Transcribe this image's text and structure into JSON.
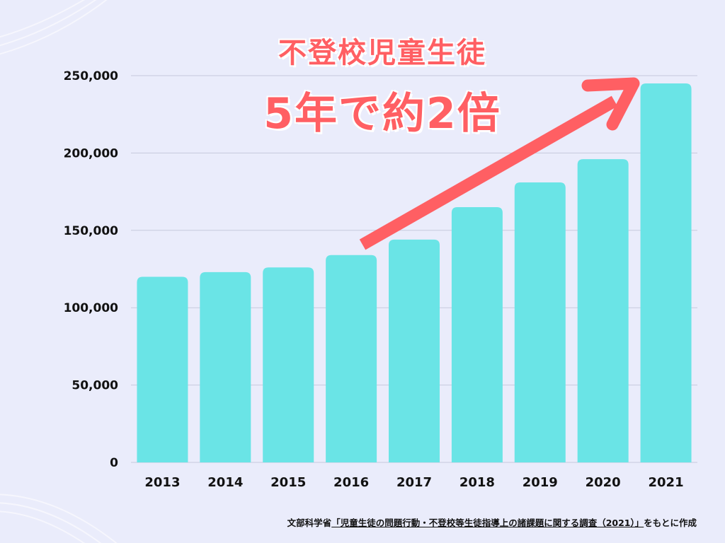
{
  "chart_data": {
    "type": "bar",
    "title": "不登校児童生徒",
    "subtitle": "5年で約2倍",
    "categories": [
      "2013",
      "2014",
      "2015",
      "2016",
      "2017",
      "2018",
      "2019",
      "2020",
      "2021"
    ],
    "values": [
      120000,
      123000,
      126000,
      134000,
      144000,
      165000,
      181000,
      196000,
      245000
    ],
    "y_ticks": [
      "0",
      "50,000",
      "100,000",
      "150,000",
      "200,000",
      "250,000"
    ],
    "ylim": [
      0,
      250000
    ],
    "grid": true,
    "legend": "none",
    "annotation": "upward-arrow"
  },
  "source": {
    "prefix": "文部科学省",
    "report": "「児童生徒の問題行動・不登校等生徒指導上の諸課題に関する調査（2021）」",
    "suffix": "をもとに作成"
  },
  "colors": {
    "background": "#eaecfb",
    "bar": "#6ae4e6",
    "accent": "#ff5f63",
    "grid": "#c6c9dd"
  }
}
